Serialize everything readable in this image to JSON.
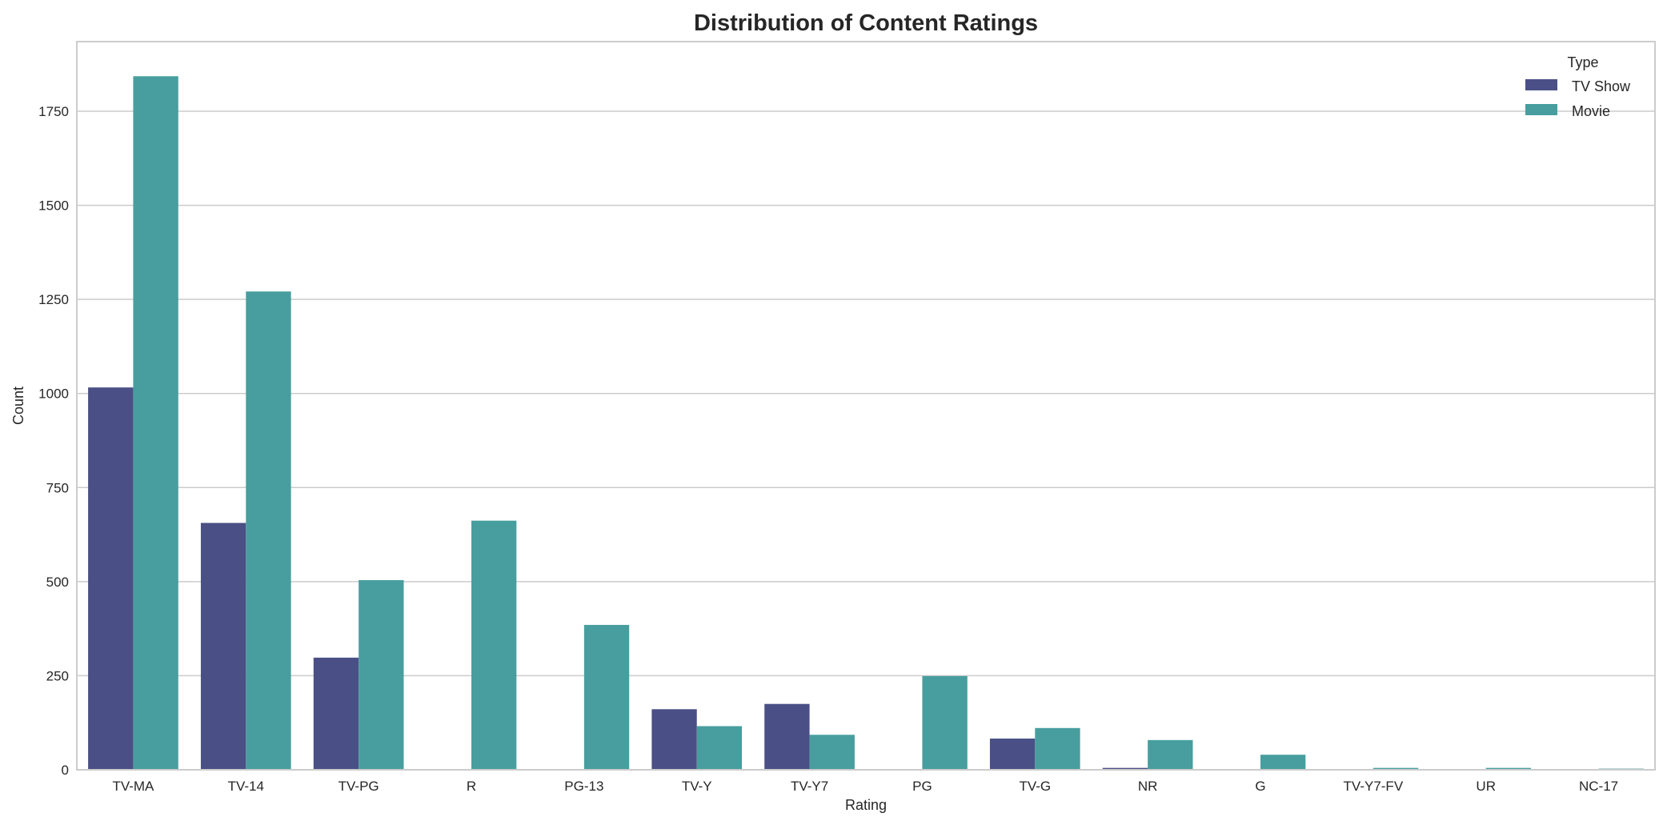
{
  "chart_data": {
    "type": "bar",
    "title": "Distribution of Content Ratings",
    "xlabel": "Rating",
    "ylabel": "Count",
    "ylim": [
      0,
      1935
    ],
    "yticks": [
      0,
      250,
      500,
      750,
      1000,
      1250,
      1500,
      1750
    ],
    "grid": true,
    "legend": {
      "title": "Type",
      "placement": "top-right"
    },
    "categories": [
      "TV-MA",
      "TV-14",
      "TV-PG",
      "R",
      "PG-13",
      "TV-Y",
      "TV-Y7",
      "PG",
      "TV-G",
      "NR",
      "G",
      "TV-Y7-FV",
      "UR",
      "NC-17"
    ],
    "series": [
      {
        "name": "TV Show",
        "color": "#4a5085",
        "values": [
          1016,
          656,
          298,
          2,
          0,
          161,
          175,
          0,
          83,
          5,
          0,
          1,
          0,
          0
        ]
      },
      {
        "name": "Movie",
        "color": "#489e9e",
        "values": [
          1843,
          1271,
          504,
          662,
          385,
          116,
          93,
          249,
          111,
          79,
          40,
          5,
          5,
          3
        ]
      }
    ]
  }
}
